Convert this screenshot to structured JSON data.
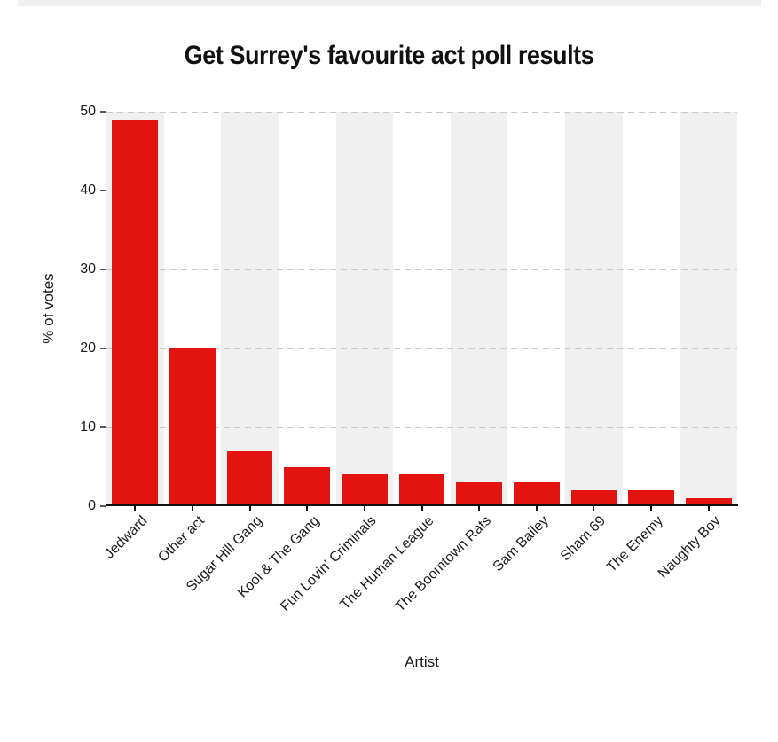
{
  "page": {
    "background_color": "#ffffff",
    "top_strip_color": "#f0f0f0"
  },
  "chart_data": {
    "type": "bar",
    "title": "Get Surrey's favourite act poll results",
    "xlabel": "Artist",
    "ylabel": "% of votes",
    "categories": [
      "Jedward",
      "Other act",
      "Sugar Hill Gang",
      "Kool & The Gang",
      "Fun Lovin' Criminals",
      "The Human League",
      "The Boomtown Rats",
      "Sam Bailey",
      "Sham 69",
      "The Enemy",
      "Naughty Boy"
    ],
    "values": [
      49,
      20,
      7,
      5,
      4,
      4,
      3,
      3,
      2,
      2,
      1
    ],
    "ylim": [
      0,
      50
    ],
    "yticks": [
      0,
      10,
      20,
      30,
      40,
      50
    ],
    "grid": "dashed horizontal lines at major y ticks",
    "legend": "none",
    "x_label_rotation_deg": 45,
    "bar_color": "#e3130f",
    "stripe_color": "#f0f0f0",
    "gridline_color": "#c9c9c9",
    "axis_line_color": "#111111",
    "text_color": "#1a1a1a"
  }
}
